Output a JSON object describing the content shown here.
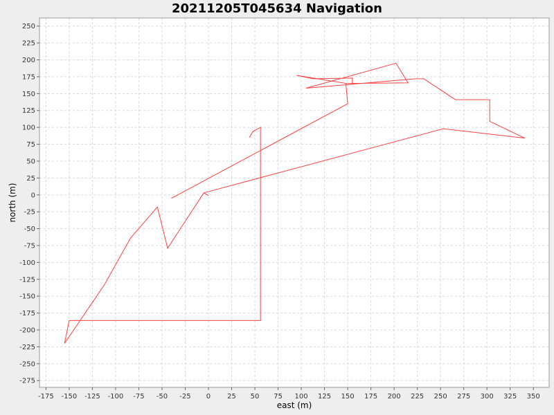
{
  "chart_data": {
    "type": "line",
    "title": "20211205T045634 Navigation",
    "xlabel": "east (m)",
    "ylabel": "north (m)",
    "xlim": [
      -182,
      367
    ],
    "ylim": [
      -285,
      262
    ],
    "x_ticks": [
      -175,
      -150,
      -125,
      -100,
      -75,
      -50,
      -25,
      0,
      25,
      50,
      75,
      100,
      125,
      150,
      175,
      200,
      225,
      250,
      275,
      300,
      325,
      350
    ],
    "y_ticks": [
      250,
      225,
      200,
      175,
      150,
      125,
      100,
      75,
      50,
      25,
      0,
      -25,
      -50,
      -75,
      -100,
      -125,
      -150,
      -175,
      -200,
      -225,
      -250,
      -275
    ],
    "grid": true,
    "legend": "none",
    "colors": {
      "line": "#ff4040",
      "plot_background": "#ffffff",
      "grid": "#d8d8d8",
      "page_background": "#eeeeee"
    },
    "series": [
      {
        "points": [
          [
            0,
            -1
          ],
          [
            -5,
            3
          ],
          [
            -44,
            -79
          ],
          [
            -55,
            -18
          ],
          [
            -84,
            -64
          ],
          [
            -112,
            -133
          ],
          [
            -155,
            -220
          ],
          [
            -150,
            -186
          ],
          [
            56,
            -186
          ],
          [
            56,
            100
          ],
          [
            48,
            94
          ],
          [
            44,
            85
          ]
        ]
      },
      {
        "points": [
          [
            -40,
            -5
          ],
          [
            150,
            135
          ],
          [
            148,
            165
          ],
          [
            155,
            165
          ],
          [
            155,
            173
          ],
          [
            113,
            172
          ],
          [
            95,
            177
          ],
          [
            149,
            165
          ],
          [
            215,
            166
          ],
          [
            202,
            195
          ],
          [
            105,
            158
          ],
          [
            223,
            172
          ],
          [
            232,
            172
          ],
          [
            266,
            141
          ],
          [
            303,
            141
          ],
          [
            303,
            109
          ],
          [
            341,
            84
          ],
          [
            253,
            98
          ],
          [
            -5,
            3
          ]
        ]
      }
    ]
  }
}
